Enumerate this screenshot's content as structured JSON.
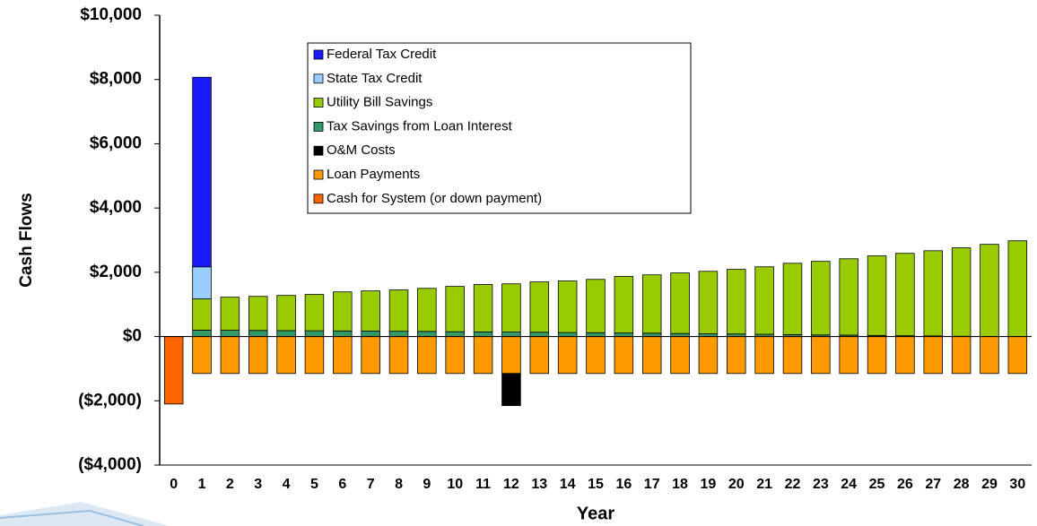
{
  "chart_data": {
    "type": "bar",
    "stacked": true,
    "y_label": "Cash Flows",
    "x_label": "Year",
    "categories": [
      "0",
      "1",
      "2",
      "3",
      "4",
      "5",
      "6",
      "7",
      "8",
      "9",
      "10",
      "11",
      "12",
      "13",
      "14",
      "15",
      "16",
      "17",
      "18",
      "19",
      "20",
      "21",
      "22",
      "23",
      "24",
      "25",
      "26",
      "27",
      "28",
      "29",
      "30"
    ],
    "series": [
      {
        "name": "Federal Tax Credit",
        "color": "#1a1aff",
        "values": [
          null,
          5900,
          null,
          null,
          null,
          null,
          null,
          null,
          null,
          null,
          null,
          null,
          null,
          null,
          null,
          null,
          null,
          null,
          null,
          null,
          null,
          null,
          null,
          null,
          null,
          null,
          null,
          null,
          null,
          null,
          null
        ]
      },
      {
        "name": "State Tax Credit",
        "color": "#99ccff",
        "values": [
          null,
          1000,
          null,
          null,
          null,
          null,
          null,
          null,
          null,
          null,
          null,
          null,
          null,
          null,
          null,
          null,
          null,
          null,
          null,
          null,
          null,
          null,
          null,
          null,
          null,
          null,
          null,
          null,
          null,
          null,
          null
        ]
      },
      {
        "name": "Utility Bill Savings",
        "color": "#99cc00",
        "values": [
          null,
          970,
          1030,
          1060,
          1095,
          1130,
          1215,
          1250,
          1285,
          1340,
          1410,
          1475,
          1500,
          1565,
          1605,
          1660,
          1760,
          1815,
          1885,
          1945,
          2010,
          2100,
          2220,
          2290,
          2375,
          2475,
          2565,
          2650,
          2750,
          2865,
          2980
        ]
      },
      {
        "name": "Tax Savings from Loan Interest",
        "color": "#339966",
        "values": [
          null,
          200,
          195,
          190,
          185,
          180,
          175,
          170,
          165,
          160,
          150,
          145,
          140,
          135,
          125,
          120,
          110,
          105,
          95,
          85,
          80,
          70,
          60,
          50,
          45,
          35,
          25,
          20,
          10,
          5,
          0
        ]
      },
      {
        "name": "O&M Costs",
        "color": "#000000",
        "values": [
          null,
          null,
          null,
          null,
          null,
          null,
          null,
          null,
          null,
          null,
          null,
          null,
          -1000,
          null,
          null,
          null,
          null,
          null,
          null,
          null,
          null,
          null,
          null,
          null,
          null,
          null,
          null,
          null,
          null,
          null,
          null
        ]
      },
      {
        "name": "Loan Payments",
        "color": "#ff9900",
        "values": [
          null,
          -1150,
          -1150,
          -1150,
          -1150,
          -1150,
          -1150,
          -1150,
          -1150,
          -1150,
          -1150,
          -1150,
          -1150,
          -1150,
          -1150,
          -1150,
          -1150,
          -1150,
          -1150,
          -1150,
          -1150,
          -1150,
          -1150,
          -1150,
          -1150,
          -1150,
          -1150,
          -1150,
          -1150,
          -1150,
          -1150
        ]
      },
      {
        "name": "Cash for System (or down payment)",
        "color": "#ff6600",
        "values": [
          -2100,
          null,
          null,
          null,
          null,
          null,
          null,
          null,
          null,
          null,
          null,
          null,
          null,
          null,
          null,
          null,
          null,
          null,
          null,
          null,
          null,
          null,
          null,
          null,
          null,
          null,
          null,
          null,
          null,
          null,
          null
        ]
      }
    ],
    "ylim": [
      -4000,
      10000
    ],
    "yticks": [
      {
        "value": -4000,
        "label": "($4,000)"
      },
      {
        "value": -2000,
        "label": "($2,000)"
      },
      {
        "value": 0,
        "label": "$0"
      },
      {
        "value": 2000,
        "label": "$2,000"
      },
      {
        "value": 4000,
        "label": "$4,000"
      },
      {
        "value": 6000,
        "label": "$6,000"
      },
      {
        "value": 8000,
        "label": "$8,000"
      },
      {
        "value": 10000,
        "label": "$10,000"
      }
    ],
    "grid": false
  }
}
